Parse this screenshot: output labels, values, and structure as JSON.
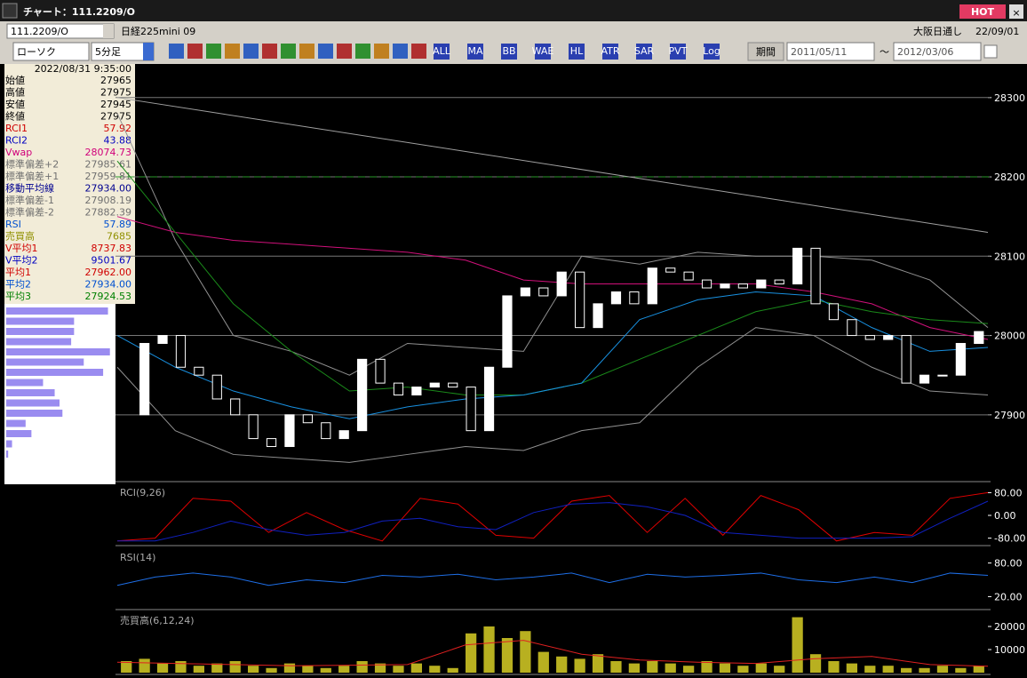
{
  "window": {
    "title": "チャート：111.2209/O",
    "hot": "HOT",
    "close": "×"
  },
  "toolbar": {
    "code": "111.2209/O",
    "name": "日経225mini 09",
    "market": "大阪日通し",
    "date": "22/09/01",
    "chart_type": "ローソク",
    "interval": "5分足",
    "icons": [
      "ALL",
      "MA",
      "BB",
      "WAE",
      "HL",
      "ATR",
      "SAR",
      "PVT",
      "Log"
    ],
    "period": "期間",
    "from": "2011/05/11",
    "tilde": "〜",
    "to": "2012/03/06"
  },
  "info": {
    "time": "2022/08/31 9:35:00",
    "rows": [
      {
        "label": "始値",
        "value": "27965",
        "color": "#000"
      },
      {
        "label": "高値",
        "value": "27975",
        "color": "#000"
      },
      {
        "label": "安値",
        "value": "27945",
        "color": "#000"
      },
      {
        "label": "終値",
        "value": "27975",
        "color": "#000"
      },
      {
        "label": "RCI1",
        "value": "57.92",
        "color": "#d00000"
      },
      {
        "label": "RCI2",
        "value": "43.88",
        "color": "#0000c0"
      },
      {
        "label": "Vwap",
        "value": "28074.73",
        "color": "#d0007a"
      },
      {
        "label": "標準偏差+2",
        "value": "27985.61",
        "color": "#707070"
      },
      {
        "label": "標準偏差+1",
        "value": "27959.81",
        "color": "#707070"
      },
      {
        "label": "移動平均線",
        "value": "27934.00",
        "color": "#000090"
      },
      {
        "label": "標準偏差-1",
        "value": "27908.19",
        "color": "#707070"
      },
      {
        "label": "標準偏差-2",
        "value": "27882.39",
        "color": "#707070"
      },
      {
        "label": "RSI",
        "value": "57.89",
        "color": "#0050d0"
      },
      {
        "label": "売買高",
        "value": "7685",
        "color": "#909000"
      },
      {
        "label": "V平均1",
        "value": "8737.83",
        "color": "#d00000"
      },
      {
        "label": "V平均2",
        "value": "9501.67",
        "color": "#0000c0"
      },
      {
        "label": "平均1",
        "value": "27962.00",
        "color": "#d00000"
      },
      {
        "label": "平均2",
        "value": "27934.00",
        "color": "#0050d0"
      },
      {
        "label": "平均3",
        "value": "27924.53",
        "color": "#008000"
      }
    ]
  },
  "profile": {
    "xlim": [
      0,
      110
    ],
    "values": [
      105,
      70,
      70,
      67,
      107,
      80,
      100,
      38,
      50,
      55,
      58,
      20,
      26,
      6,
      2
    ],
    "color": "#9a8cf0"
  },
  "price": {
    "type": "candlestick",
    "ylim": [
      27818,
      28339
    ],
    "yticks": [
      27900,
      28000,
      28100,
      28200,
      28300
    ],
    "dashed": 28200,
    "closes": [
      27900,
      27990,
      28000,
      27960,
      27950,
      27920,
      27900,
      27870,
      27860,
      27900,
      27890,
      27870,
      27880,
      27970,
      27940,
      27925,
      27935,
      27940,
      27935,
      27880,
      27960,
      28050,
      28060,
      28050,
      28080,
      28010,
      28040,
      28055,
      28040,
      28085,
      28080,
      28070,
      28060,
      28065,
      28060,
      28070,
      28065,
      28110,
      28040,
      28020,
      28000,
      27995,
      28000,
      27940,
      27950,
      27950,
      27990,
      28005
    ],
    "lines": [
      {
        "color": "#a0a0a0",
        "values": [
          28300,
          28130
        ]
      },
      {
        "color": "#909090",
        "values": [
          28280,
          28120,
          28000,
          27980,
          27950,
          27990,
          27985,
          27980,
          28100,
          28090,
          28105,
          28100,
          28100,
          28095,
          28070,
          28010
        ]
      },
      {
        "color": "#909090",
        "values": [
          27960,
          27880,
          27850,
          27845,
          27840,
          27850,
          27860,
          27855,
          27880,
          27890,
          27960,
          28010,
          28000,
          27960,
          27930,
          27925
        ]
      },
      {
        "color": "#d0107a",
        "values": [
          28150,
          28130,
          28120,
          28115,
          28110,
          28105,
          28095,
          28070,
          28065,
          28065,
          28065,
          28065,
          28055,
          28040,
          28010,
          27995
        ]
      },
      {
        "color": "#1a8a1a",
        "values": [
          28220,
          28130,
          28040,
          27980,
          27930,
          27935,
          27925,
          27925,
          27940,
          27970,
          28000,
          28030,
          28045,
          28030,
          28020,
          28015
        ]
      },
      {
        "color": "#1890e0",
        "values": [
          28000,
          27960,
          27930,
          27910,
          27895,
          27910,
          27920,
          27925,
          27940,
          28020,
          28045,
          28055,
          28050,
          28010,
          27980,
          27985
        ]
      }
    ]
  },
  "rci": {
    "label": "RCI(9,26)",
    "ylim": [
      -100,
      100
    ],
    "yticks": [
      {
        "value": 80,
        "label": "80.00"
      },
      {
        "value": 0,
        "label": "0.00"
      },
      {
        "value": -80,
        "label": "-80.00"
      }
    ],
    "series": [
      {
        "color": "#e00000",
        "values": [
          -90,
          -80,
          60,
          50,
          -60,
          10,
          -50,
          -90,
          60,
          40,
          -70,
          -80,
          50,
          70,
          -60,
          60,
          -70,
          70,
          20,
          -90,
          -60,
          -70,
          60,
          80
        ]
      },
      {
        "color": "#1020c0",
        "values": [
          -90,
          -90,
          -60,
          -20,
          -50,
          -70,
          -60,
          -20,
          -10,
          -40,
          -50,
          10,
          40,
          45,
          30,
          0,
          -60,
          -70,
          -80,
          -80,
          -80,
          -75,
          -10,
          50
        ]
      }
    ]
  },
  "rsi": {
    "label": "RSI(14)",
    "ylim": [
      0,
      100
    ],
    "yticks": [
      {
        "value": 80,
        "label": "80.00"
      },
      {
        "value": 20,
        "label": "20.00"
      }
    ],
    "series": [
      {
        "color": "#1e6ee6",
        "values": [
          40,
          55,
          62,
          55,
          40,
          50,
          45,
          58,
          55,
          60,
          50,
          55,
          62,
          45,
          60,
          55,
          58,
          62,
          50,
          45,
          55,
          45,
          62,
          58
        ]
      }
    ]
  },
  "volume": {
    "label": "売買高(6,12,24)",
    "ylim": [
      0,
      25000
    ],
    "yticks": [
      20000,
      10000
    ],
    "color": "#b8b020",
    "values": [
      5000,
      6000,
      4000,
      5000,
      3000,
      4000,
      5000,
      3000,
      2000,
      4000,
      3000,
      2000,
      3000,
      5000,
      4000,
      3000,
      4000,
      3000,
      2000,
      17000,
      20000,
      15000,
      18000,
      9000,
      7000,
      6000,
      8000,
      5000,
      4000,
      5000,
      4000,
      3000,
      5000,
      4000,
      3000,
      4000,
      3000,
      24000,
      8000,
      5000,
      4000,
      3000,
      3000,
      2000,
      2000,
      3000,
      2000,
      3000
    ],
    "series": [
      {
        "color": "#e02020",
        "values": [
          4500,
          4000,
          3500,
          3000,
          3200,
          3500,
          12000,
          14000,
          8000,
          5500,
          4500,
          4000,
          6000,
          7000,
          3500,
          2800
        ]
      }
    ]
  }
}
